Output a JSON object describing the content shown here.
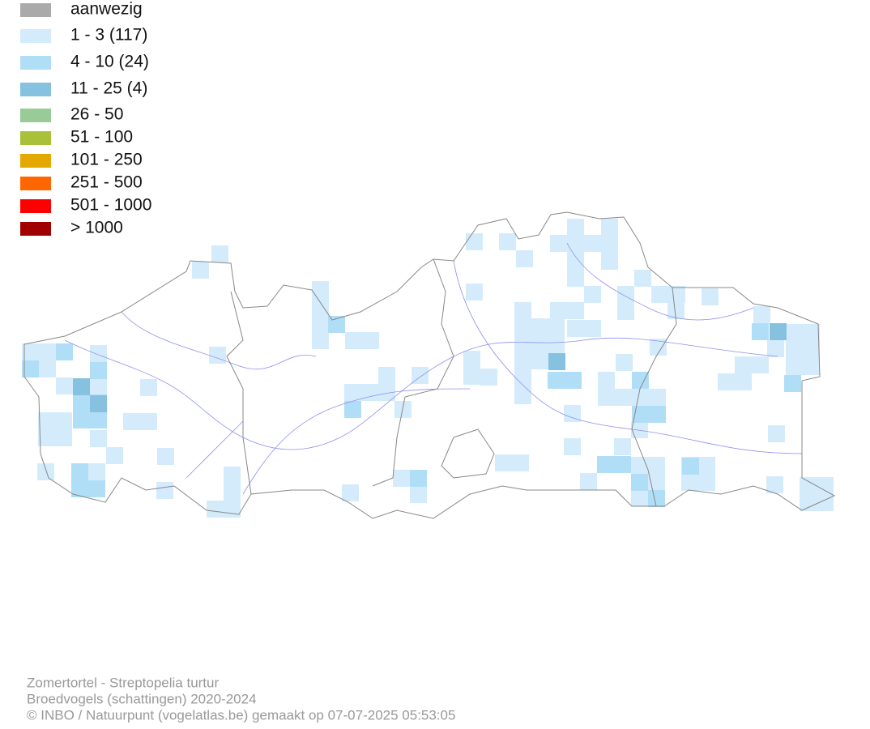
{
  "legend": {
    "items": [
      {
        "label": "aanwezig",
        "color": "#aaaaaa"
      },
      {
        "label": "1 - 3 (117)",
        "color": "#d4ebfb"
      },
      {
        "label": "4 - 10 (24)",
        "color": "#b1def7"
      },
      {
        "label": "11 - 25 (4)",
        "color": "#86c1df"
      },
      {
        "label": "26 - 50",
        "color": "#98cb98"
      },
      {
        "label": "51 - 100",
        "color": "#a9c039"
      },
      {
        "label": "101 - 250",
        "color": "#e4a900"
      },
      {
        "label": "251 - 500",
        "color": "#ff6600"
      },
      {
        "label": "501 - 1000",
        "color": "#ff0000"
      },
      {
        "label": "> 1000",
        "color": "#a00000"
      }
    ]
  },
  "footer": {
    "lines": [
      "Zomertortel - Streptopelia turtur",
      "Broedvogels (schattingen) 2020-2024",
      "© INBO / Natuurpunt (vogelatlas.be) gemaakt op 07-07-2025 05:53:05"
    ]
  }
}
